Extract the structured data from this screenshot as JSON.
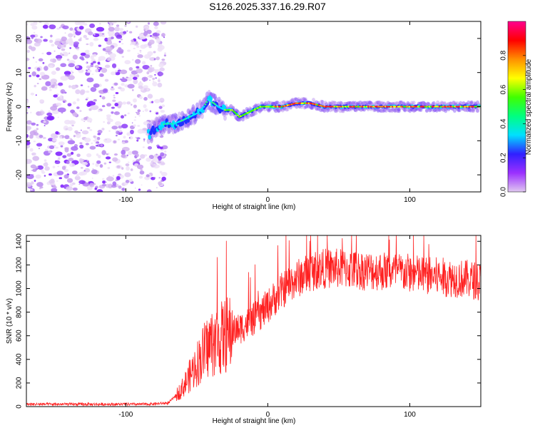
{
  "title": "S126.2025.337.16.29.R07",
  "chart_data": [
    {
      "type": "heatmap",
      "xlabel": "Height of straight line (km)",
      "ylabel": "Frequency (Hz)",
      "xlim": [
        -170,
        150
      ],
      "ylim": [
        -25,
        25
      ],
      "xticks": [
        -100,
        0,
        100
      ],
      "yticks": [
        -20,
        -10,
        0,
        10,
        20
      ],
      "noise_region_x": [
        -170,
        -72
      ],
      "ridge": {
        "x": [
          -83,
          -78,
          -72,
          -66,
          -60,
          -55,
          -50,
          -45,
          -42,
          -38,
          -35,
          -30,
          -25,
          -20,
          -15,
          -10,
          -5,
          0,
          10,
          20,
          30,
          40,
          60,
          80,
          100,
          120,
          148
        ],
        "y": [
          -8,
          -6,
          -5,
          -5,
          -4,
          -3,
          -2,
          0,
          2,
          1,
          0,
          -1,
          -1,
          -3,
          -2,
          -1,
          0,
          0,
          0,
          1,
          1,
          0,
          0,
          0,
          0,
          0,
          0
        ]
      },
      "colorbar": {
        "label": "Normalized spectral amplitude",
        "ticks": [
          0.0,
          0.2,
          0.4,
          0.6,
          0.8
        ],
        "range": [
          0,
          1
        ],
        "colormap": [
          "#e0c8f0",
          "#9b30ff",
          "#3020ff",
          "#00e0ff",
          "#00ff80",
          "#40ff00",
          "#ffff00",
          "#ff9000",
          "#ff0000",
          "#ff0090"
        ]
      }
    },
    {
      "type": "line",
      "xlabel": "Height of straight line (km)",
      "ylabel": "SNR (10 * v/v)",
      "xlim": [
        -170,
        150
      ],
      "ylim": [
        0,
        1450
      ],
      "xticks": [
        -100,
        0,
        100
      ],
      "yticks": [
        0,
        200,
        400,
        600,
        800,
        1000,
        1200,
        1400
      ],
      "color": "#ff2020",
      "series": [
        {
          "name": "SNR",
          "x": [
            -170,
            -140,
            -110,
            -85,
            -70,
            -65,
            -60,
            -55,
            -50,
            -45,
            -40,
            -35,
            -30,
            -26,
            -24,
            -20,
            -15,
            -10,
            -5,
            0,
            5,
            10,
            15,
            20,
            25,
            30,
            35,
            40,
            45,
            50,
            60,
            70,
            80,
            90,
            100,
            110,
            120,
            130,
            140,
            150
          ],
          "values": [
            20,
            20,
            20,
            20,
            30,
            90,
            160,
            260,
            360,
            460,
            540,
            560,
            600,
            620,
            640,
            660,
            700,
            740,
            790,
            850,
            920,
            980,
            1040,
            1080,
            1110,
            1140,
            1160,
            1170,
            1170,
            1170,
            1160,
            1150,
            1150,
            1140,
            1130,
            1110,
            1100,
            1090,
            1080,
            1060
          ]
        }
      ]
    }
  ]
}
